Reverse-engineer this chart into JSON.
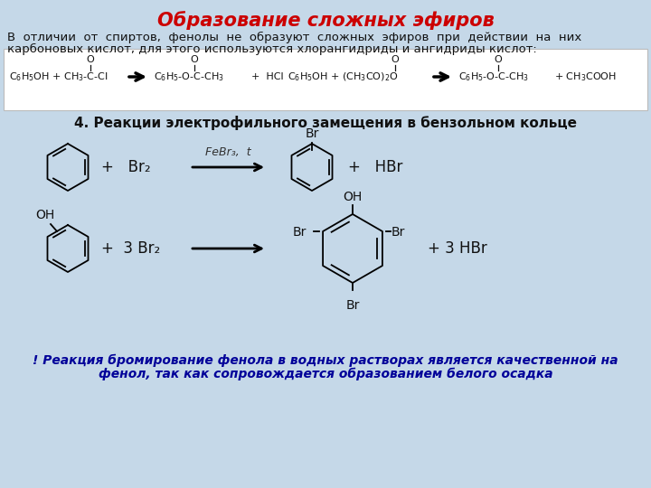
{
  "title": "Образование сложных эфиров",
  "title_color": "#cc0000",
  "bg_color": "#c5d8e8",
  "text1_line1": "В  отличии  от  спиртов,  фенолы  не  образуют  сложных  эфиров  при  действии  на  них",
  "text1_line2": "карбоновых кислот, для этого используются хлорангидриды и ангидриды кислот:",
  "section_title": "4. Реакции электрофильного замещения в бензольном кольце",
  "bottom_note_line1": "! Реакция бромирование фенола в водных растворах является качественной на",
  "bottom_note_line2": "фенол, так как сопровождается образованием белого осадка",
  "rxn_box_bg": "#ffffff",
  "rxn1_left": "C₆H₅OH + CH₃-C-CI",
  "rxn1_arrow": "→",
  "rxn1_middle": "C₆H₅-O-C-CH₃",
  "rxn1_hcl": "+  HCl",
  "rxn2_left": "C₆H₅OH + (CH₃CO)₂O",
  "rxn2_arrow": "→",
  "rxn2_middle": "C₆H₅-O-C-CH₃",
  "rxn2_acoh": "+ CH₃COOH",
  "cat_text": "FeBr₃,  t",
  "br2_text": "+   Br₂",
  "hbr_text": "+   HBr",
  "three_br2": "+  3 Br₂",
  "three_hbr": "+ 3 HBr",
  "oh_text": "OH",
  "br_text": "Br"
}
